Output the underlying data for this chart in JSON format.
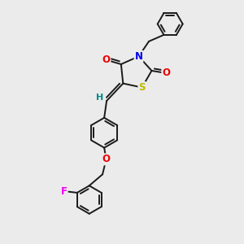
{
  "bg_color": "#ebebeb",
  "bond_color": "#1a1a1a",
  "atom_colors": {
    "N": "#0000ee",
    "O": "#ee0000",
    "S": "#bbbb00",
    "F": "#ee00ee",
    "H": "#008888",
    "C": "#1a1a1a"
  },
  "font_size_atom": 8.5,
  "line_width": 1.4
}
